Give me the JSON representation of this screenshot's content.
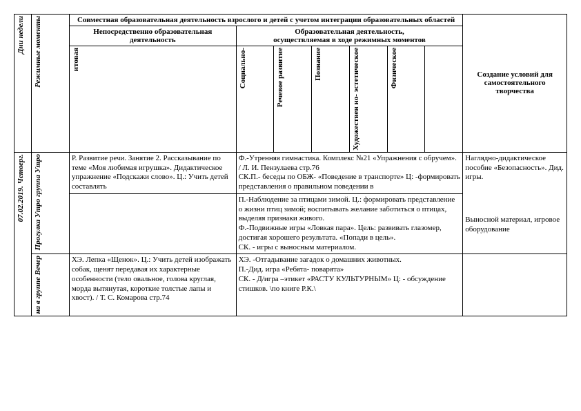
{
  "header": {
    "days_of_week": "Дни недели",
    "regime_moments": "Режимные моменты",
    "joint_activity": "Совместная образовательная деятельность взрослого и детей с учетом интеграции образовательных областей",
    "direct_edu": "Непосредственно образовательная деятельность",
    "edu_in_regime": "Образовательная деятельность,",
    "edu_in_regime_sub": "осуществляемая в ходе режимных моментов",
    "conditions": "Создание условий для самостоятельного творчества",
    "col_cognitive": "итовая",
    "col_social": "Социально-",
    "col_speech": "Речевое развитие",
    "col_cognition": "Познание",
    "col_art": "Художествен но- эстетическое",
    "col_physical": "Физическое"
  },
  "day": {
    "date": "07.02.2019. Четверг.",
    "morning_label": "Прогулка Утро группа Утро",
    "evening_label": "на в группе Вечер"
  },
  "rows": {
    "morning_left": "Р. Развитие речи. Занятие 2. Рассказывание по теме «Моя любимая игрушка». Дидактическое упражнение «Подскажи слово». Ц.: Учить детей составлять",
    "morning_right": "Ф.-Утренняя гимнастика. Комплекс №21 «Упражнения с обручем». / Л. И. Пензулаева стр.76\nСК.П.- беседы по ОБЖ- «Поведение в транспорте» Ц: -формировать представления о правильном поведении в",
    "morning_side": "Наглядно-дидактическое пособие «Безопасность». Дид. игры.",
    "walk_right": "П.-Наблюдение за птицами зимой. Ц.: формировать представление о жизни птиц зимой; воспитывать желание заботиться о птицах, выделяя признаки живого.\nФ.-Подвижные игры «Ловкая пара». Цель: развивать глазомер, достигая хорошего результата. «Попади в цель».\nСК. - игры с выносным материалом.",
    "walk_side": "Выносной материал, игровое оборудование",
    "evening_left": "ХЭ. Лепка «Щенок». Ц.: Учить детей изображать собак, щенят передавая их характерные особенности (тело овальное, голова круглая, морда вытянутая, короткие толстые лапы и хвост). / Т. С. Комарова стр.74",
    "evening_right": "ХЭ. -Отгадывание загадок о домашних животных.\nП.-Дид. игра «Ребята- поварята»\nСК. - Д/игра –этикет «РАСТУ КУЛЬТУРНЫМ» Ц: - обсуждение стишков. \\по книге Р.К.\\"
  }
}
